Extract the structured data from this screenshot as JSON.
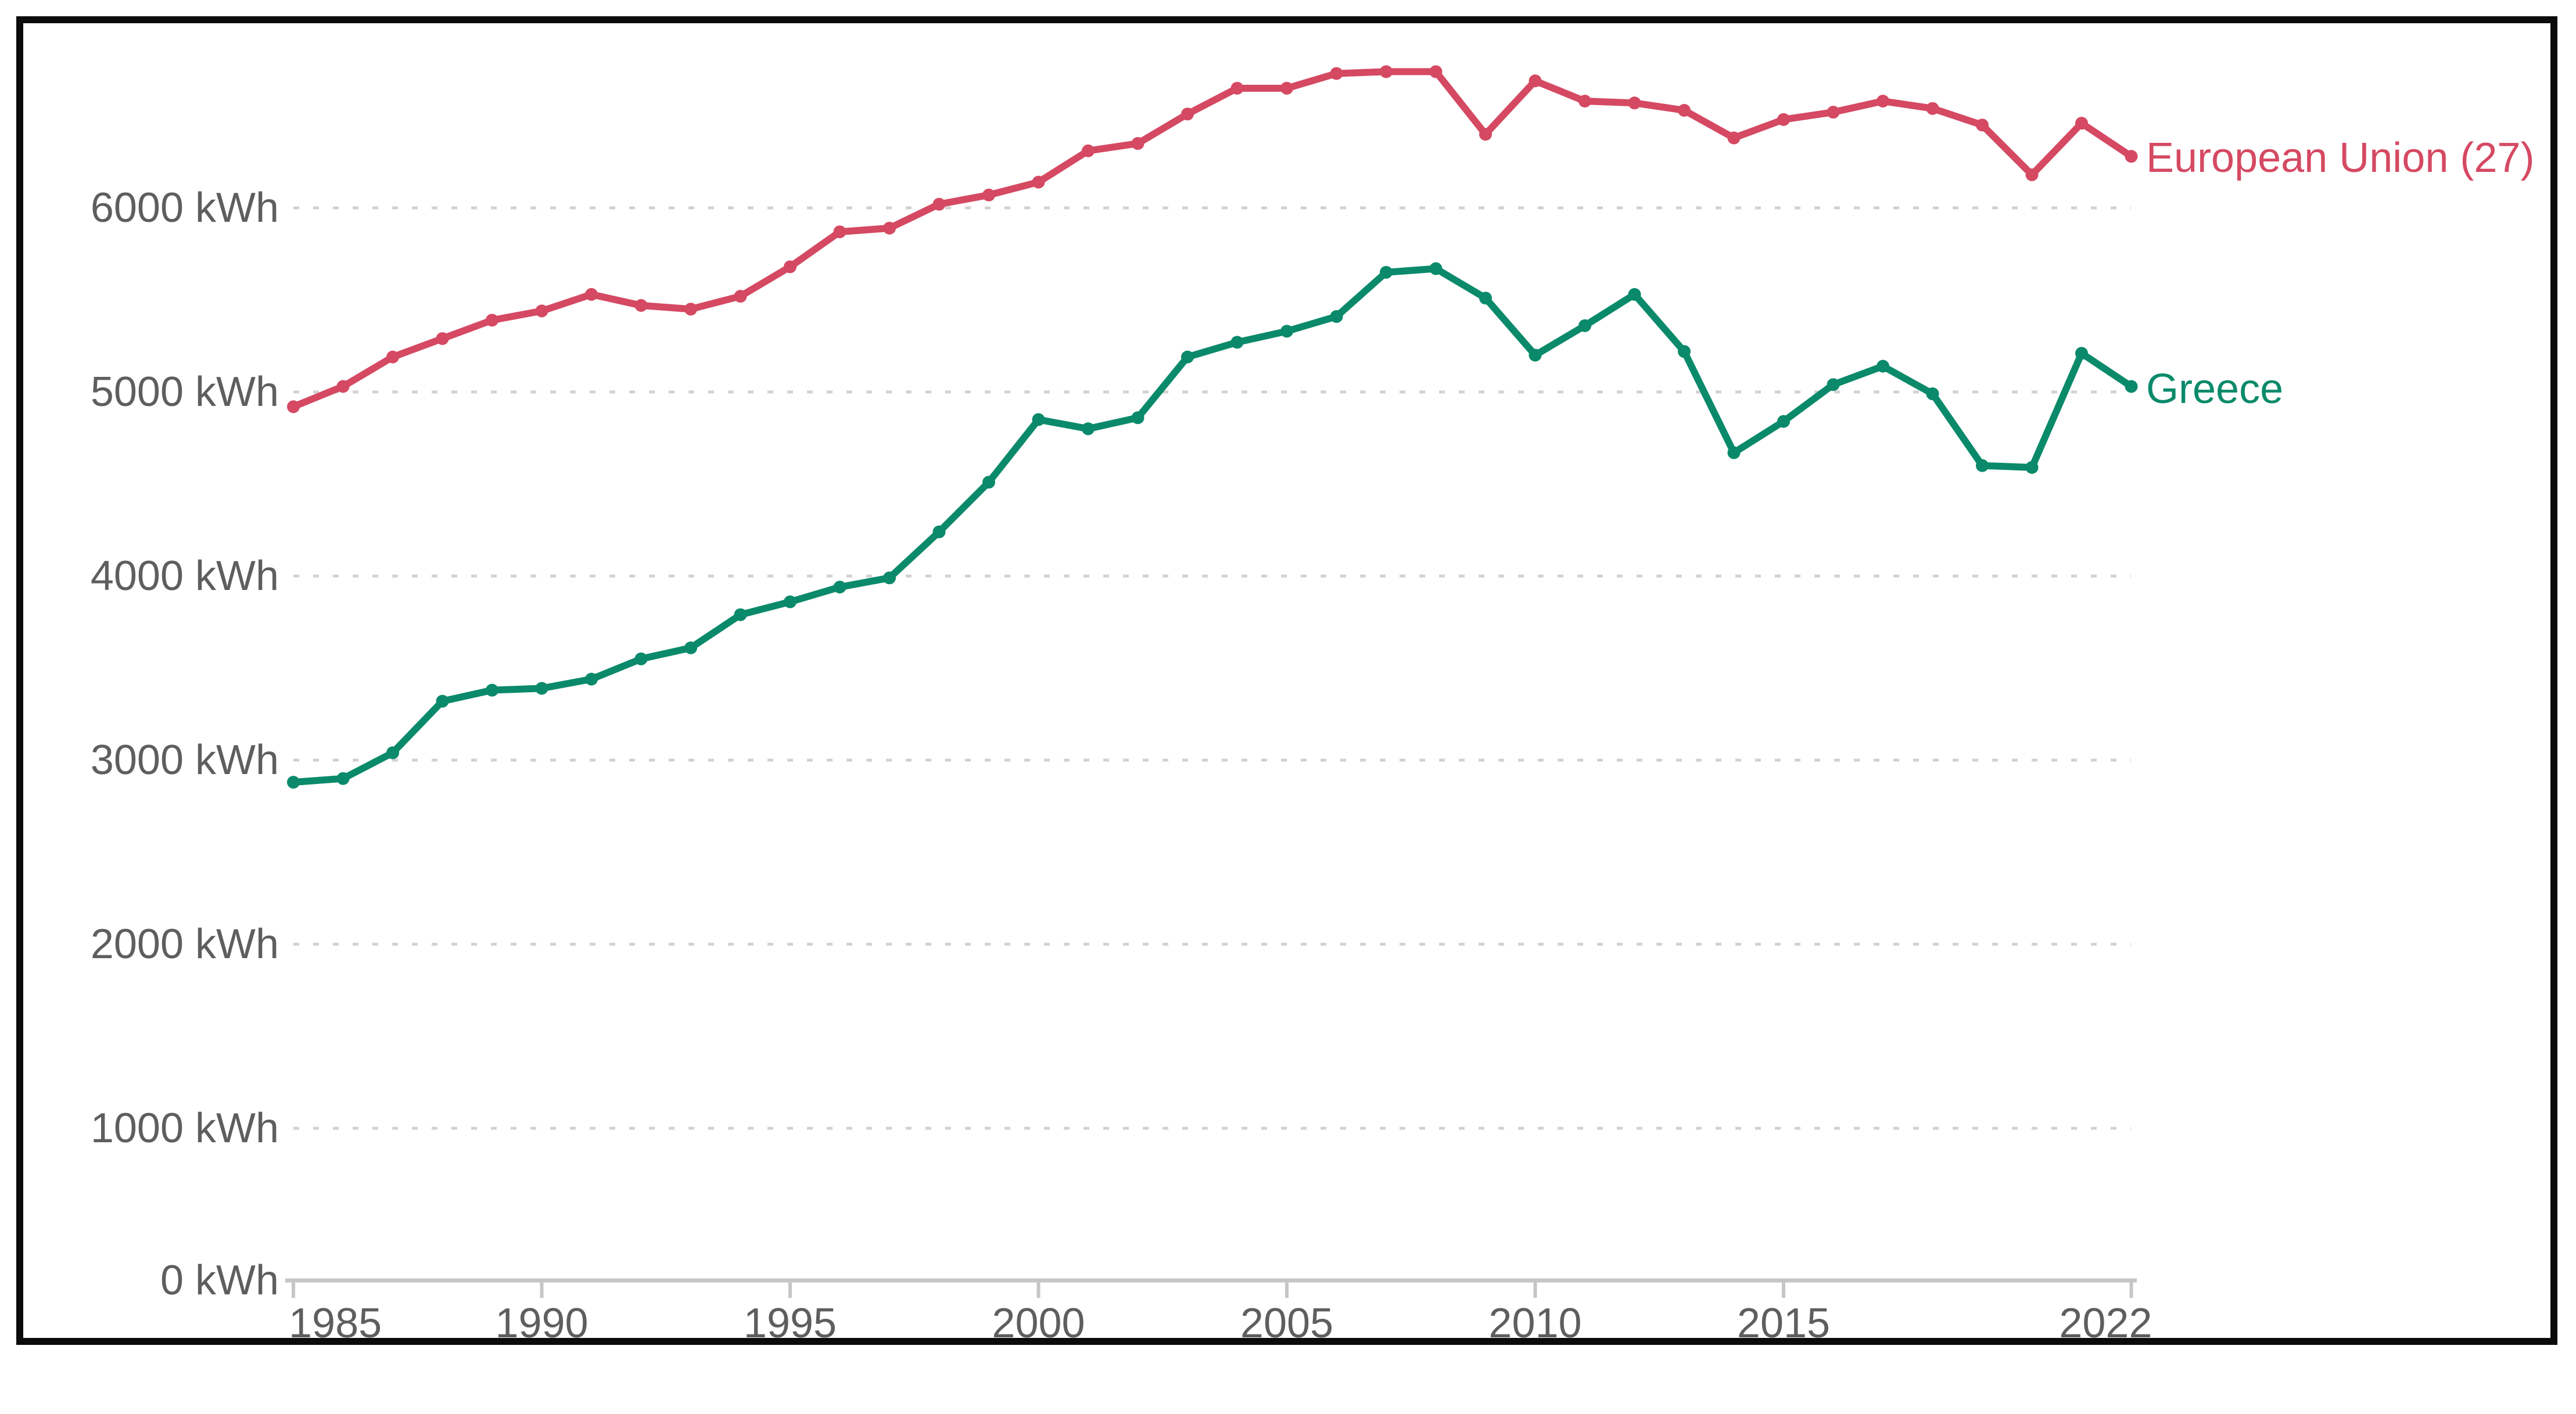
{
  "page": {
    "background_color": "#ffffff",
    "frame_border_color": "#0b0b0b"
  },
  "chart_data": {
    "type": "line",
    "title": "",
    "xlabel": "",
    "ylabel": "",
    "unit": "kWh",
    "grid": "horizontal-dotted",
    "legend_position": "right-edge-of-lines",
    "xlim": [
      1985,
      2022
    ],
    "ylim": [
      0,
      6900
    ],
    "x": [
      1985,
      1986,
      1987,
      1988,
      1989,
      1990,
      1991,
      1992,
      1993,
      1994,
      1995,
      1996,
      1997,
      1998,
      1999,
      2000,
      2001,
      2002,
      2003,
      2004,
      2005,
      2006,
      2007,
      2008,
      2009,
      2010,
      2011,
      2012,
      2013,
      2014,
      2015,
      2016,
      2017,
      2018,
      2019,
      2020,
      2021,
      2022
    ],
    "series": [
      {
        "name": "European Union (27)",
        "color": "#d54962",
        "values": [
          4920,
          5030,
          5190,
          5290,
          5390,
          5440,
          5530,
          5470,
          5450,
          5520,
          5680,
          5870,
          5890,
          6020,
          6070,
          6140,
          6310,
          6350,
          6510,
          6650,
          6650,
          6730,
          6740,
          6740,
          6400,
          6690,
          6580,
          6570,
          6530,
          6380,
          6480,
          6520,
          6580,
          6540,
          6450,
          6180,
          6460,
          6280
        ]
      },
      {
        "name": "Greece",
        "color": "#0a8a6b",
        "values": [
          2880,
          2900,
          3040,
          3320,
          3380,
          3390,
          3440,
          3550,
          3610,
          3790,
          3860,
          3940,
          3990,
          4240,
          4510,
          4850,
          4800,
          4860,
          5190,
          5270,
          5330,
          5410,
          5650,
          5670,
          5510,
          5200,
          5360,
          5530,
          5220,
          4670,
          4840,
          5040,
          5140,
          4990,
          4600,
          4590,
          5210,
          5030
        ]
      }
    ],
    "y_ticks": [
      {
        "value": 0,
        "label": "0 kWh"
      },
      {
        "value": 1000,
        "label": "1000 kWh"
      },
      {
        "value": 2000,
        "label": "2000 kWh"
      },
      {
        "value": 3000,
        "label": "3000 kWh"
      },
      {
        "value": 4000,
        "label": "4000 kWh"
      },
      {
        "value": 5000,
        "label": "5000 kWh"
      },
      {
        "value": 6000,
        "label": "6000 kWh"
      }
    ],
    "x_ticks": [
      {
        "value": 1985,
        "label": "1985"
      },
      {
        "value": 1990,
        "label": "1990"
      },
      {
        "value": 1995,
        "label": "1995"
      },
      {
        "value": 2000,
        "label": "2000"
      },
      {
        "value": 2005,
        "label": "2005"
      },
      {
        "value": 2010,
        "label": "2010"
      },
      {
        "value": 2015,
        "label": "2015"
      },
      {
        "value": 2022,
        "label": "2022"
      }
    ],
    "style": {
      "gridline_color": "#d2d2d2",
      "axis_color": "#c6c6c6",
      "tick_label_color": "#5e5e5e",
      "line_width": 12,
      "marker_radius": 11
    }
  }
}
